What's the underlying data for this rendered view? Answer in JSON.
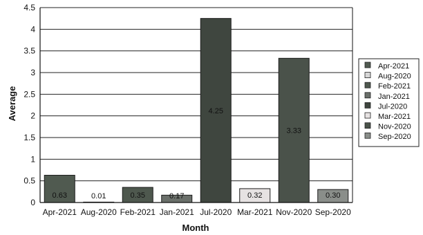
{
  "chart_data": {
    "type": "bar",
    "categories": [
      "Apr-2021",
      "Aug-2020",
      "Feb-2021",
      "Jan-2021",
      "Jul-2020",
      "Mar-2021",
      "Nov-2020",
      "Sep-2020"
    ],
    "values": [
      0.63,
      0.01,
      0.35,
      0.17,
      4.25,
      0.32,
      3.33,
      0.3
    ],
    "data_labels": [
      "0.63",
      "0.01",
      "0.35",
      "0.17",
      "4.25",
      "0.32",
      "3.33",
      "0.30"
    ],
    "colors": [
      "#505a50",
      "#d6d6d6",
      "#4e584e",
      "#6a6f6a",
      "#3f463f",
      "#e6e2e2",
      "#4a524a",
      "#8a8e8a"
    ],
    "xlabel": "Month",
    "ylabel": "Average",
    "ylim": [
      0,
      4.5
    ],
    "yticks": [
      0,
      0.5,
      1,
      1.5,
      2,
      2.5,
      3,
      3.5,
      4,
      4.5
    ],
    "ytick_labels": [
      "0",
      "0.5",
      "1",
      "1.5",
      "2",
      "2.5",
      "3",
      "3.5",
      "4",
      "4.5"
    ],
    "grid": true,
    "legend_position": "right",
    "legend_entries": [
      "Apr-2021",
      "Aug-2020",
      "Feb-2021",
      "Jan-2021",
      "Jul-2020",
      "Mar-2021",
      "Nov-2020",
      "Sep-2020"
    ]
  }
}
